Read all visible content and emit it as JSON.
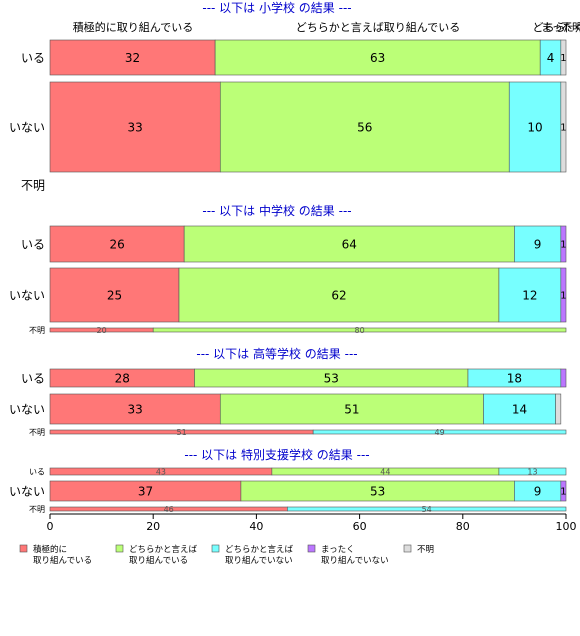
{
  "chart_data": {
    "type": "bar",
    "orientation": "horizontal",
    "stacked": true,
    "percent": true,
    "xlim": [
      0,
      100
    ],
    "x_ticks": [
      "0",
      "20",
      "40",
      "60",
      "80",
      "100"
    ],
    "grid": false,
    "legend_position": "bottom-left",
    "colors": {
      "積極的に取り組んでいる": "#ff7777",
      "どちらかと言えば取り組んでいる": "#bbff77",
      "どちらかと言えば取り組んでいない": "#77ffff",
      "まったく取り組んでいない": "#bb77ff",
      "不明": "#dddddd",
      "title": "#0000cc"
    },
    "legend": [
      {
        "key": "積極的に取り組んでいる",
        "lines": [
          "積極的に",
          "取り組んでいる"
        ]
      },
      {
        "key": "どちらかと言えば取り組んでいる",
        "lines": [
          "どちらかと言えば",
          "取り組んでいる"
        ]
      },
      {
        "key": "どちらかと言えば取り組んでいない",
        "lines": [
          "どちらかと言えば",
          "取り組んでいない"
        ]
      },
      {
        "key": "まったく取り組んでいない",
        "lines": [
          "まったく",
          "取り組んでいない"
        ]
      },
      {
        "key": "不明",
        "lines": [
          "不明"
        ]
      }
    ],
    "panels": [
      {
        "title": "--- 以下は 小学校 の結果 ---",
        "top_labels": [
          "積極的に取り組んでいる",
          "どちらかと言えば取り組んでいる",
          "どちら",
          "まったく",
          "不明"
        ],
        "rows": [
          {
            "label": "いる",
            "values": [
              32,
              63,
              4,
              0,
              1
            ],
            "labels": [
              "32",
              "63",
              "4",
              "",
              "1"
            ]
          },
          {
            "label": "いない",
            "values": [
              33,
              56,
              10,
              0,
              1
            ],
            "labels": [
              "33",
              "56",
              "10",
              "",
              "1"
            ]
          },
          {
            "label": "不明",
            "values": [],
            "labels": []
          }
        ]
      },
      {
        "title": "--- 以下は 中学校 の結果 ---",
        "rows": [
          {
            "label": "いる",
            "values": [
              26,
              64,
              9,
              1,
              0
            ],
            "labels": [
              "26",
              "64",
              "9",
              "1",
              ""
            ]
          },
          {
            "label": "いない",
            "values": [
              25,
              62,
              12,
              1,
              0
            ],
            "labels": [
              "25",
              "62",
              "12",
              "1",
              ""
            ]
          },
          {
            "label": "不明",
            "values": [
              20,
              80,
              0,
              0,
              0
            ],
            "labels": [
              "20",
              "80",
              "",
              "",
              ""
            ]
          }
        ]
      },
      {
        "title": "--- 以下は 高等学校 の結果 ---",
        "rows": [
          {
            "label": "いる",
            "values": [
              28,
              53,
              18,
              1,
              0
            ],
            "labels": [
              "28",
              "53",
              "18",
              "",
              ""
            ]
          },
          {
            "label": "いない",
            "values": [
              33,
              51,
              14,
              0,
              1
            ],
            "labels": [
              "33",
              "51",
              "14",
              "",
              ""
            ]
          },
          {
            "label": "不明",
            "values": [
              51,
              0,
              49,
              0,
              0
            ],
            "labels": [
              "51",
              "",
              "49",
              "",
              ""
            ]
          }
        ]
      },
      {
        "title": "--- 以下は 特別支援学校 の結果 ---",
        "rows": [
          {
            "label": "いる",
            "values": [
              43,
              44,
              13,
              0,
              0
            ],
            "labels": [
              "43",
              "44",
              "13",
              "",
              ""
            ]
          },
          {
            "label": "いない",
            "values": [
              37,
              53,
              9,
              1,
              0
            ],
            "labels": [
              "37",
              "53",
              "9",
              "1",
              ""
            ]
          },
          {
            "label": "不明",
            "values": [
              46,
              0,
              54,
              0,
              0
            ],
            "labels": [
              "46",
              "",
              "54",
              "",
              ""
            ]
          }
        ]
      }
    ]
  }
}
